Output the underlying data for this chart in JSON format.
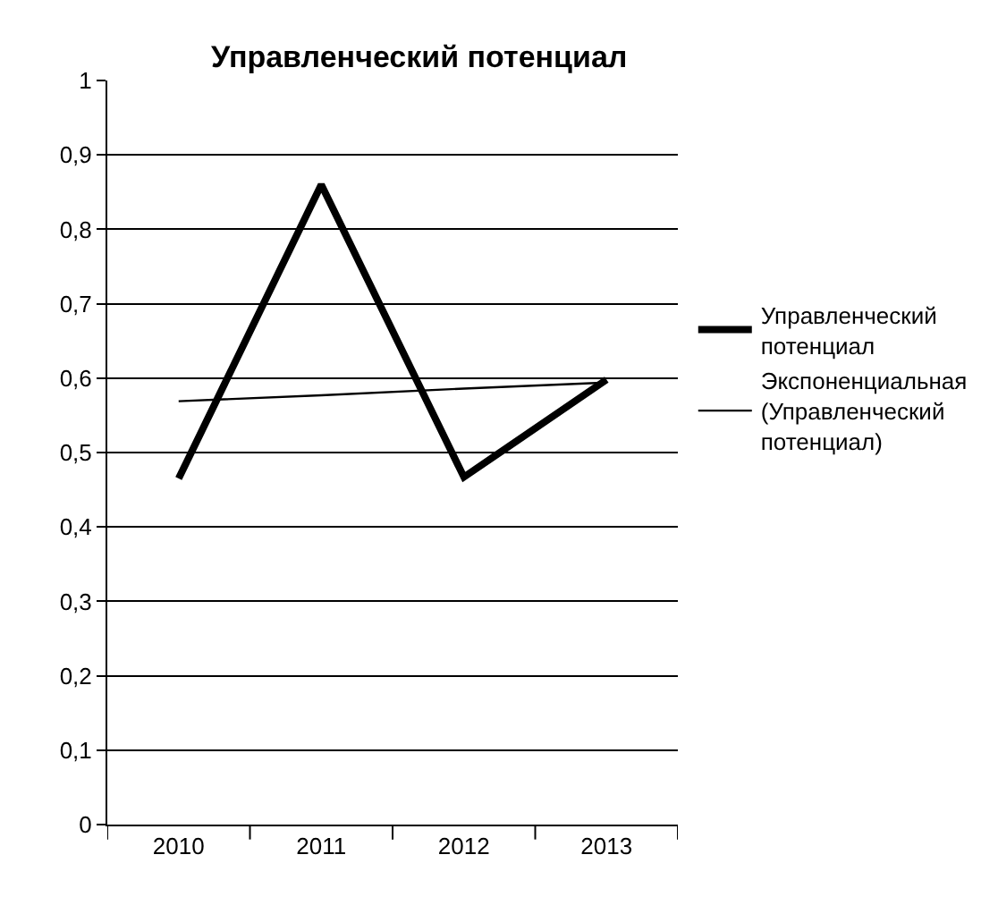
{
  "chart_data": {
    "type": "line",
    "title": "Управленческий потенциал",
    "categories": [
      "2010",
      "2011",
      "2012",
      "2013"
    ],
    "series": [
      {
        "name": "Управленческий потенциал",
        "color": "#000000",
        "values": [
          0.465,
          0.86,
          0.467,
          0.598
        ]
      },
      {
        "name": "Экспоненциальная (Управленческий потенциал)",
        "color": "#000000",
        "values": [
          0.569,
          0.577,
          0.586,
          0.594
        ]
      }
    ],
    "ylim": [
      0,
      1
    ],
    "yticks": [
      {
        "value": 0,
        "label": "0"
      },
      {
        "value": 0.1,
        "label": "0,1"
      },
      {
        "value": 0.2,
        "label": "0,2"
      },
      {
        "value": 0.3,
        "label": "0,3"
      },
      {
        "value": 0.4,
        "label": "0,4"
      },
      {
        "value": 0.5,
        "label": "0,5"
      },
      {
        "value": 0.6,
        "label": "0,6"
      },
      {
        "value": 0.7,
        "label": "0,7"
      },
      {
        "value": 0.8,
        "label": "0,8"
      },
      {
        "value": 0.9,
        "label": "0,9"
      },
      {
        "value": 1,
        "label": "1"
      }
    ],
    "grid": "y",
    "legend": "right",
    "marker": "none",
    "line_style": "solid"
  }
}
